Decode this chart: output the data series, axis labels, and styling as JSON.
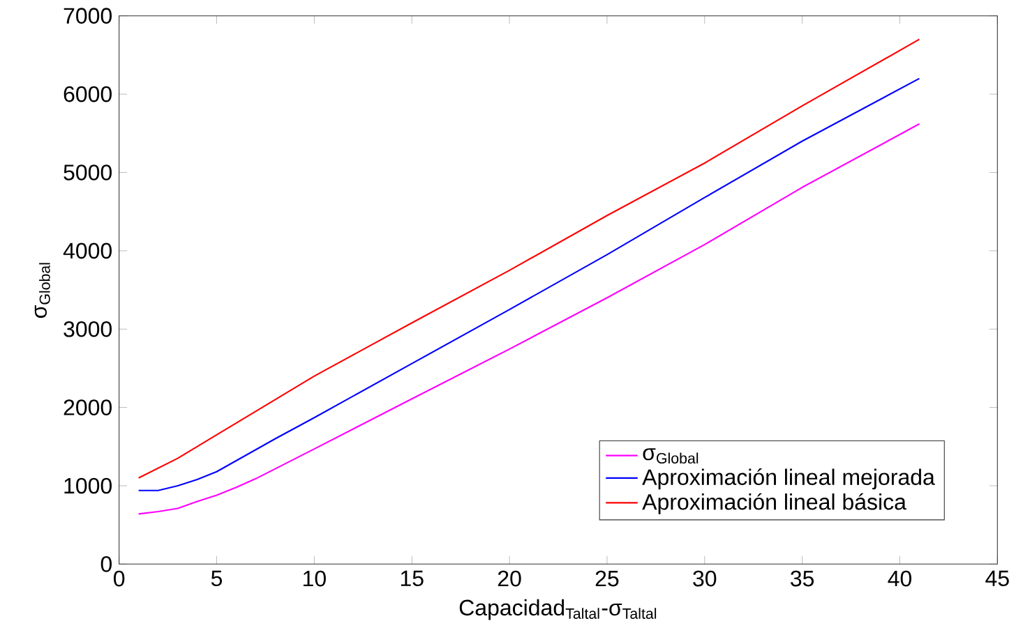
{
  "chart_data": {
    "type": "line",
    "xlabel": "Capacidad$_{Taltal}$-σ$_{Taltal}$",
    "ylabel": "σ$_{Global}$",
    "xlim": [
      0,
      45
    ],
    "ylim": [
      0,
      7000
    ],
    "xticks": [
      0,
      5,
      10,
      15,
      20,
      25,
      30,
      35,
      40,
      45
    ],
    "yticks": [
      0,
      1000,
      2000,
      3000,
      4000,
      5000,
      6000,
      7000
    ],
    "grid": false,
    "legend": "bottom right",
    "marker": "none",
    "line_style": "solid",
    "series": [
      {
        "name": "σ$_{Global}$",
        "color": "#ff00ff",
        "x": [
          1,
          2,
          3,
          4,
          5,
          6,
          7,
          10,
          15,
          20,
          25,
          30,
          35,
          41
        ],
        "values": [
          640,
          670,
          710,
          800,
          880,
          980,
          1090,
          1470,
          2110,
          2745,
          3400,
          4080,
          4810,
          5620
        ]
      },
      {
        "name": "Aproximación lineal mejorada",
        "color": "#0000ff",
        "x": [
          1,
          2,
          3,
          4,
          5,
          6,
          7,
          8,
          10,
          15,
          20,
          25,
          30,
          35,
          41
        ],
        "values": [
          940,
          940,
          1000,
          1080,
          1180,
          1320,
          1460,
          1600,
          1870,
          2560,
          3250,
          3950,
          4680,
          5400,
          6200
        ]
      },
      {
        "name": "Aproximación lineal básica",
        "color": "#ff0000",
        "x": [
          1,
          3,
          5,
          10,
          15,
          20,
          25,
          30,
          35,
          41
        ],
        "values": [
          1100,
          1350,
          1650,
          2400,
          3080,
          3750,
          4450,
          5120,
          5850,
          6700
        ]
      }
    ]
  }
}
